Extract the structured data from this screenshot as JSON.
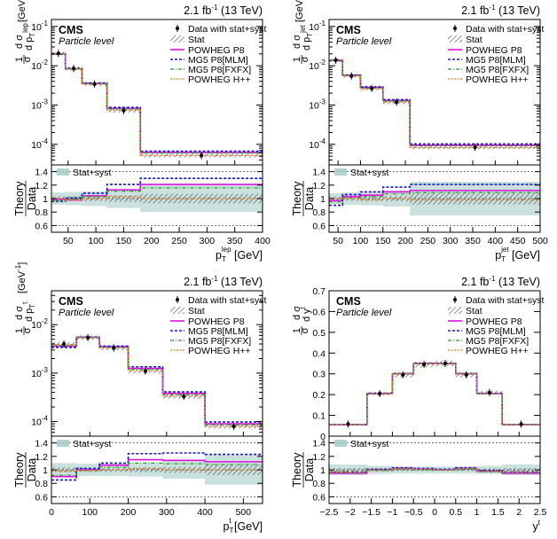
{
  "colors": {
    "data": "#000000",
    "powheg_p8": "#e010e0",
    "mg5_mlm": "#1515c8",
    "mg5_fxfx": "#2a9a2a",
    "powheg_hpp": "#e0802a",
    "stat_hatch": "#555555",
    "statsyst_band": "#9ec9c2"
  },
  "common": {
    "lumi": "2.1 fb",
    "lumi_sup": "-1",
    "energy": "(13 TeV)",
    "experiment": "CMS",
    "level": "Particle level",
    "ratio_ylabel_top": "Theory",
    "ratio_ylabel_bottom": "Data"
  },
  "legend": {
    "data": "Data with stat+syst",
    "stat": "Stat",
    "powheg_p8": "POWHEG P8",
    "mg5_mlm": "MG5 P8[MLM]",
    "mg5_fxfx": "MG5 P8[FXFX]",
    "powheg_hpp": "POWHEG H++",
    "statsyst": "Stat+syst"
  },
  "chart_data": [
    {
      "type": "line",
      "xlabel": "p",
      "xlabel_sub": "T",
      "xlabel_sup": "lep",
      "xlabel_unit": "[GeV]",
      "ylabel_sup": "lep",
      "yscale": "log",
      "ylim": [
        3e-05,
        0.15
      ],
      "xlim": [
        20,
        400
      ],
      "xticks": [
        50,
        100,
        150,
        200,
        250,
        300,
        350,
        400
      ],
      "edges": [
        20,
        45,
        75,
        120,
        180,
        400
      ],
      "data": [
        0.0205,
        0.0085,
        0.0034,
        0.00072,
        5.2e-05
      ],
      "series": [
        {
          "key": "powheg_p8",
          "values": [
            0.0202,
            0.0083,
            0.0035,
            0.00082,
            6.2e-05
          ]
        },
        {
          "key": "mg5_mlm",
          "values": [
            0.0197,
            0.0086,
            0.00365,
            0.00087,
            6.7e-05
          ]
        },
        {
          "key": "mg5_fxfx",
          "values": [
            0.02,
            0.0084,
            0.0035,
            0.0008,
            6e-05
          ]
        },
        {
          "key": "powheg_hpp",
          "values": [
            0.0205,
            0.0083,
            0.0034,
            0.00074,
            5.2e-05
          ]
        }
      ],
      "ratio": {
        "ylim": [
          0.5,
          1.5
        ],
        "yticks": [
          0.6,
          0.8,
          1.0,
          1.2,
          1.4
        ],
        "band": [
          0.09,
          0.1,
          0.11,
          0.14,
          0.2
        ],
        "series": [
          {
            "key": "powheg_p8",
            "values": [
              0.99,
              0.98,
              1.04,
              1.13,
              1.21
            ]
          },
          {
            "key": "mg5_mlm",
            "values": [
              0.96,
              1.01,
              1.08,
              1.21,
              1.3
            ]
          },
          {
            "key": "mg5_fxfx",
            "values": [
              0.97,
              0.99,
              1.03,
              1.11,
              1.16
            ]
          },
          {
            "key": "powheg_hpp",
            "values": [
              1.0,
              0.98,
              1.0,
              1.03,
              1.0
            ]
          }
        ]
      }
    },
    {
      "type": "line",
      "xlabel": "p",
      "xlabel_sub": "T",
      "xlabel_sup": "jet",
      "xlabel_unit": "[GeV]",
      "ylabel_sup": "jet",
      "yscale": "log",
      "ylim": [
        3e-05,
        0.15
      ],
      "xlim": [
        30,
        500
      ],
      "xticks": [
        50,
        100,
        150,
        200,
        250,
        300,
        350,
        400,
        450,
        500
      ],
      "edges": [
        30,
        60,
        100,
        150,
        210,
        500
      ],
      "data": [
        0.0138,
        0.0055,
        0.00265,
        0.00118,
        8.4e-05
      ],
      "series": [
        {
          "key": "powheg_p8",
          "values": [
            0.0138,
            0.0057,
            0.0028,
            0.0013,
            9.5e-05
          ]
        },
        {
          "key": "mg5_mlm",
          "values": [
            0.0135,
            0.0058,
            0.0029,
            0.00137,
            0.000102
          ]
        },
        {
          "key": "mg5_fxfx",
          "values": [
            0.0139,
            0.0056,
            0.0027,
            0.00126,
            9.2e-05
          ]
        },
        {
          "key": "powheg_hpp",
          "values": [
            0.014,
            0.0055,
            0.0026,
            0.00118,
            8.2e-05
          ]
        }
      ],
      "ratio": {
        "ylim": [
          0.5,
          1.5
        ],
        "yticks": [
          0.6,
          0.8,
          1.0,
          1.2,
          1.4
        ],
        "band": [
          0.08,
          0.09,
          0.1,
          0.12,
          0.25
        ],
        "series": [
          {
            "key": "powheg_p8",
            "values": [
              0.97,
              1.03,
              1.05,
              1.1,
              1.12
            ]
          },
          {
            "key": "mg5_mlm",
            "values": [
              0.9,
              1.06,
              1.1,
              1.17,
              1.21
            ]
          },
          {
            "key": "mg5_fxfx",
            "values": [
              0.95,
              1.01,
              1.03,
              1.07,
              1.09
            ]
          },
          {
            "key": "powheg_hpp",
            "values": [
              1.0,
              1.0,
              0.98,
              1.0,
              0.98
            ]
          }
        ]
      }
    },
    {
      "type": "line",
      "xlabel": "p",
      "xlabel_sub": "T",
      "xlabel_sup": "t",
      "xlabel_unit": "[GeV]",
      "ylabel_sup": "t",
      "yscale": "log",
      "ylim": [
        5e-05,
        0.05
      ],
      "xlim": [
        0,
        550
      ],
      "xticks": [
        0,
        100,
        200,
        300,
        400,
        500
      ],
      "edges": [
        0,
        65,
        125,
        200,
        290,
        400,
        550
      ],
      "data": [
        0.004,
        0.0054,
        0.0033,
        0.0011,
        0.00033,
        8e-05
      ],
      "series": [
        {
          "key": "powheg_p8",
          "values": [
            0.0036,
            0.0055,
            0.0035,
            0.00125,
            0.00038,
            9e-05
          ]
        },
        {
          "key": "mg5_mlm",
          "values": [
            0.0034,
            0.0055,
            0.0036,
            0.00135,
            0.00041,
            9.8e-05
          ]
        },
        {
          "key": "mg5_fxfx",
          "values": [
            0.0037,
            0.0054,
            0.0034,
            0.0012,
            0.00036,
            8.6e-05
          ]
        },
        {
          "key": "powheg_hpp",
          "values": [
            0.0039,
            0.0054,
            0.0033,
            0.00112,
            0.000335,
            8e-05
          ]
        }
      ],
      "ratio": {
        "ylim": [
          0.5,
          1.5
        ],
        "yticks": [
          0.6,
          0.8,
          1.0,
          1.2,
          1.4
        ],
        "band": [
          0.1,
          0.09,
          0.09,
          0.1,
          0.13,
          0.22
        ],
        "series": [
          {
            "key": "powheg_p8",
            "values": [
              0.9,
              1.0,
              1.07,
              1.15,
              1.14,
              1.12
            ]
          },
          {
            "key": "mg5_mlm",
            "values": [
              0.85,
              1.02,
              1.1,
              1.24,
              1.25,
              1.23
            ]
          },
          {
            "key": "mg5_fxfx",
            "values": [
              0.92,
              0.99,
              1.04,
              1.1,
              1.09,
              1.08
            ]
          },
          {
            "key": "powheg_hpp",
            "values": [
              0.98,
              0.99,
              1.0,
              1.02,
              1.0,
              1.0
            ]
          }
        ]
      }
    },
    {
      "type": "line",
      "xlabel": "y",
      "xlabel_sub": "",
      "xlabel_sup": "t",
      "xlabel_unit": "",
      "ylabel_sup": "t",
      "yscale": "linear",
      "ylim": [
        0,
        0.7
      ],
      "yticks": [
        0,
        0.1,
        0.2,
        0.3,
        0.4,
        0.5,
        0.6,
        0.7
      ],
      "xlim": [
        -2.5,
        2.5
      ],
      "xticks": [
        -2.5,
        -2,
        -1.5,
        -1,
        -0.5,
        0,
        0.5,
        1,
        1.5,
        2,
        2.5
      ],
      "xticklabels": [
        "−2.5",
        "−2",
        "−1.5",
        "−1",
        "−0.5",
        "0",
        "0.5",
        "1",
        "1.5",
        "2",
        "2.5"
      ],
      "edges": [
        -2.5,
        -1.6,
        -1.0,
        -0.5,
        0.0,
        0.5,
        1.0,
        1.6,
        2.5
      ],
      "data": [
        0.058,
        0.205,
        0.295,
        0.345,
        0.35,
        0.295,
        0.21,
        0.058
      ],
      "series": [
        {
          "key": "powheg_p8",
          "values": [
            0.055,
            0.205,
            0.3,
            0.35,
            0.35,
            0.3,
            0.205,
            0.055
          ]
        },
        {
          "key": "mg5_mlm",
          "values": [
            0.056,
            0.206,
            0.302,
            0.351,
            0.351,
            0.302,
            0.206,
            0.056
          ]
        },
        {
          "key": "mg5_fxfx",
          "values": [
            0.055,
            0.204,
            0.3,
            0.349,
            0.349,
            0.3,
            0.204,
            0.055
          ]
        },
        {
          "key": "powheg_hpp",
          "values": [
            0.056,
            0.205,
            0.301,
            0.35,
            0.35,
            0.301,
            0.205,
            0.056
          ]
        }
      ],
      "ratio": {
        "ylim": [
          0.5,
          1.5
        ],
        "yticks": [
          0.6,
          0.8,
          1.0,
          1.2,
          1.4
        ],
        "band": [
          0.08,
          0.06,
          0.05,
          0.05,
          0.05,
          0.05,
          0.06,
          0.08
        ],
        "series": [
          {
            "key": "powheg_p8",
            "values": [
              0.95,
              1.0,
              1.02,
              1.01,
              1.0,
              1.02,
              0.98,
              0.95
            ]
          },
          {
            "key": "mg5_mlm",
            "values": [
              0.97,
              1.01,
              1.03,
              1.02,
              1.01,
              1.03,
              0.99,
              0.97
            ]
          },
          {
            "key": "mg5_fxfx",
            "values": [
              0.96,
              0.99,
              1.01,
              1.0,
              1.0,
              1.01,
              0.97,
              0.96
            ]
          },
          {
            "key": "powheg_hpp",
            "values": [
              0.97,
              1.0,
              1.02,
              1.01,
              1.0,
              1.02,
              0.98,
              0.97
            ]
          }
        ]
      }
    }
  ]
}
